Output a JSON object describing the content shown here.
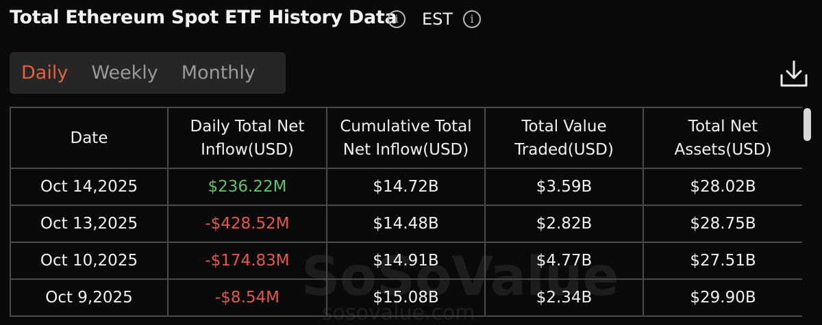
{
  "header": {
    "title": "Total Ethereum Spot ETF History Data",
    "timezone": "EST"
  },
  "tabs": [
    "Daily",
    "Weekly",
    "Monthly"
  ],
  "table": {
    "columns": [
      "Date",
      "Daily Total Net Inflow(USD)",
      "Cumulative Total Net Inflow(USD)",
      "Total Value Traded(USD)",
      "Total Net Assets(USD)"
    ],
    "rows": [
      [
        "Oct 14,2025",
        "$236.22M",
        "$14.72B",
        "$3.59B",
        "$28.02B"
      ],
      [
        "Oct 13,2025",
        "-$428.52M",
        "$14.48B",
        "$2.82B",
        "$28.75B"
      ],
      [
        "Oct 10,2025",
        "-$174.83M",
        "$14.91B",
        "$4.77B",
        "$27.51B"
      ],
      [
        "Oct 9,2025",
        "-$8.54M",
        "$15.08B",
        "$2.34B",
        "$29.90B"
      ]
    ]
  },
  "watermark": {
    "name": "SoSoValue",
    "url": "sosovalue.com"
  }
}
